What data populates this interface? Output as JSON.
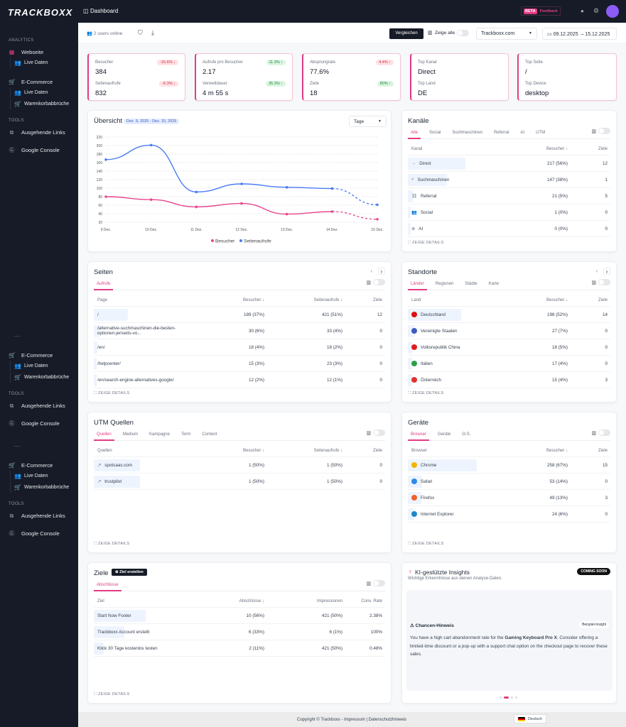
{
  "brand": {
    "logo": "TRACKBOXX"
  },
  "sidebar": {
    "analytics_label": "ANALYTICS",
    "webseite": "Webseite",
    "live": "Live Daten",
    "ecommerce": "E-Commerce",
    "warenkorb": "Warenkorbabbrüche",
    "tools_label": "TOOLS",
    "ausgehende": "Ausgehende Links",
    "google": "Google Console",
    "divider": "—"
  },
  "topbar": {
    "title": "Dashboard",
    "beta": "BETA",
    "feedback": "Feedback"
  },
  "toolbar": {
    "online": "2 users online",
    "compare": "Vergleichen",
    "show_all": "Zeige alle",
    "site": "Trackboxx.com",
    "date_range": "09.12.2025  – 15.12.2025"
  },
  "cards": [
    {
      "l1": "Besucher",
      "v1": "384",
      "b1": "-15.6% ↓",
      "t1": "neg",
      "l2": "Seitenaufrufe",
      "v2": "832",
      "b2": "-6.3% ↓",
      "t2": "neg"
    },
    {
      "l1": "Aufrufe pro Besucher",
      "v1": "2.17",
      "b1": "11.3% ↑",
      "t1": "pos",
      "l2": "Verweildauer",
      "v2": "4 m 55 s",
      "b2": "35.3% ↑",
      "t2": "pos"
    },
    {
      "l1": "Absprungrate",
      "v1": "77.6%",
      "b1": "4.4% ↑",
      "t1": "neg",
      "l2": "Ziele",
      "v2": "18",
      "b2": "80% ↑",
      "t2": "pos"
    },
    {
      "l1": "Top Kanal",
      "v1": "Direct",
      "l2": "Top Land",
      "v2": "DE"
    },
    {
      "l1": "Top Seite",
      "v1": "/",
      "l2": "Top Device",
      "v2": "desktop"
    }
  ],
  "overview": {
    "title": "Übersicht",
    "range": "Dez. 9, 2025 - Dez. 15, 2025",
    "granularity": "Tage"
  },
  "chart_data": {
    "type": "line",
    "categories": [
      "9 Dez.",
      "10 Dez.",
      "11 Dez.",
      "12 Dez.",
      "13 Dez.",
      "14 Dez.",
      "15 Dez."
    ],
    "ylim": [
      20,
      220
    ],
    "yticks": [
      20,
      40,
      60,
      80,
      100,
      120,
      140,
      160,
      180,
      200,
      220
    ],
    "grid": true,
    "legend": "bottom",
    "series": [
      {
        "name": "Besucher",
        "color": "#e8468f",
        "values": [
          80,
          73,
          56,
          64,
          39,
          45,
          27
        ]
      },
      {
        "name": "Seitenaufrufe",
        "color": "#4a7cf3",
        "values": [
          167,
          201,
          91,
          110,
          102,
          99,
          61
        ]
      }
    ],
    "dashed_last_segment": true
  },
  "panels": {
    "kanaele": {
      "title": "Kanäle",
      "tabs": [
        "Alle",
        "Social",
        "Suchmaschinen",
        "Referral",
        "AI",
        "UTM"
      ],
      "columns": [
        "Kanal",
        "Besucher ↓",
        "Ziele"
      ],
      "rows": [
        {
          "icon": "→",
          "label": "Direct",
          "cells": [
            "217 (56%)",
            "12"
          ],
          "share": 56
        },
        {
          "icon": "⌕",
          "label": "Suchmaschinen",
          "cells": [
            "147 (38%)",
            "1"
          ],
          "share": 38
        },
        {
          "icon": "⛓",
          "label": "Referral",
          "cells": [
            "21 (5%)",
            "5"
          ],
          "share": 5
        },
        {
          "icon": "👥",
          "label": "Social",
          "cells": [
            "1 (0%)",
            "0"
          ],
          "share": 0
        },
        {
          "icon": "⊕",
          "label": "AI",
          "cells": [
            "0 (0%)",
            "0"
          ],
          "share": 0
        }
      ],
      "details": "ZEIGE DETAILS"
    },
    "seiten": {
      "title": "Seiten",
      "tabs": [
        "Aufrufe"
      ],
      "columns": [
        "Page",
        "Besucher ↓",
        "Seitenaufrufe ↓",
        "Ziele"
      ],
      "rows": [
        {
          "label": "/",
          "cells": [
            "189 (37%)",
            "421 (51%)",
            "12"
          ],
          "share": 37
        },
        {
          "label": "/alternative-suchmaschinen-die-besten-optionen-jenseits-vo...",
          "cells": [
            "30 (6%)",
            "33 (4%)",
            "0"
          ],
          "share": 6
        },
        {
          "label": "/en/",
          "cells": [
            "18 (4%)",
            "18 (2%)",
            "0"
          ],
          "share": 4
        },
        {
          "label": "/helpcenter/",
          "cells": [
            "15 (3%)",
            "23 (3%)",
            "0"
          ],
          "share": 3
        },
        {
          "label": "/en/search-engine-alternatives-google/",
          "cells": [
            "12 (2%)",
            "12 (1%)",
            "0"
          ],
          "share": 2
        }
      ],
      "details": "ZEIGE DETAILS"
    },
    "standorte": {
      "title": "Standorte",
      "tabs": [
        "Länder",
        "Regionen",
        "Städte",
        "Karte"
      ],
      "columns": [
        "Land",
        "Besucher ↓",
        "Ziele"
      ],
      "rows": [
        {
          "flag": "#d11",
          "label": "Deutschland",
          "cells": [
            "198 (52%)",
            "14"
          ],
          "share": 52
        },
        {
          "flag": "#3b5bbf",
          "label": "Vereinigte Staaten",
          "cells": [
            "27 (7%)",
            "0"
          ],
          "share": 7
        },
        {
          "flag": "#e11d1d",
          "label": "Volksrepublik China",
          "cells": [
            "18 (5%)",
            "0"
          ],
          "share": 5
        },
        {
          "flag": "#2f9e44",
          "label": "Italien",
          "cells": [
            "17 (4%)",
            "0"
          ],
          "share": 4
        },
        {
          "flag": "#e03131",
          "label": "Österreich",
          "cells": [
            "15 (4%)",
            "3"
          ],
          "share": 4
        }
      ],
      "details": "ZEIGE DETAILS"
    },
    "utm": {
      "title": "UTM Quellen",
      "tabs": [
        "Quellen",
        "Medium",
        "Kampagne",
        "Term",
        "Content"
      ],
      "columns": [
        "Quellen",
        "Besucher ↓",
        "Seitenaufrufe ↓",
        "Ziele"
      ],
      "rows": [
        {
          "icon": "↗",
          "label": "spotsaas.com",
          "cells": [
            "1 (50%)",
            "1 (50%)",
            "0"
          ],
          "share": 50
        },
        {
          "icon": "↗",
          "label": "trustpilot",
          "cells": [
            "1 (50%)",
            "1 (50%)",
            "0"
          ],
          "share": 50
        }
      ],
      "details": "ZEIGE DETAILS"
    },
    "geraete": {
      "title": "Geräte",
      "tabs": [
        "Browser",
        "Geräte",
        "O.S."
      ],
      "columns": [
        "Browser",
        "Besucher ↓",
        "Ziele"
      ],
      "rows": [
        {
          "flag": "#f2b600",
          "label": "Chrome",
          "cells": [
            "258 (67%)",
            "15"
          ],
          "share": 67
        },
        {
          "flag": "#2e8ae6",
          "label": "Safari",
          "cells": [
            "53 (14%)",
            "0"
          ],
          "share": 14
        },
        {
          "flag": "#f0622d",
          "label": "Firefox",
          "cells": [
            "49 (13%)",
            "3"
          ],
          "share": 13
        },
        {
          "flag": "#1e88c7",
          "label": "Internet Explorer",
          "cells": [
            "24 (6%)",
            "0"
          ],
          "share": 6
        }
      ],
      "details": "ZEIGE DETAILS"
    },
    "ziele": {
      "title": "Ziele",
      "create": "Ziel erstellen",
      "tabs": [
        "Abschlüsse"
      ],
      "columns": [
        "Ziel",
        "Abschlüsse ↓",
        "Impressionen",
        "Conv. Rate"
      ],
      "rows": [
        {
          "label": "Start Now Footer",
          "cells": [
            "10 (56%)",
            "421 (50%)",
            "2.38%"
          ],
          "share": 56
        },
        {
          "label": "Trackboxx Account erstellt",
          "cells": [
            "6 (33%)",
            "6 (1%)",
            "100%"
          ],
          "share": 33
        },
        {
          "label": "Klick 30 Tage kostenlos testen",
          "cells": [
            "2 (11%)",
            "421 (50%)",
            "0.48%"
          ],
          "share": 11
        }
      ],
      "details": "ZEIGE DETAILS"
    }
  },
  "insights": {
    "title": "KI-gestützte Insights",
    "subtitle": "Wichtige Erkenntnisse aus deinen Analyse-Daten.",
    "badge": "COMING SOON",
    "card_title": "Chancen-Hinweis",
    "card_tag": "Beispiel-Insight",
    "text_pre": "You have a high cart abandonment rate for the ",
    "text_bold": "Gaming Keyboard Pro X",
    "text_post": ". Consider offering a limited-time discount or a pop-up with a support chat option on the checkout page to recover these sales.",
    "active_slide": 2,
    "slides": 4
  },
  "footer": {
    "copyright": "Copyright © Trackboxx - Impressum | Datenschutzhinweis",
    "language": "Deutsch"
  }
}
